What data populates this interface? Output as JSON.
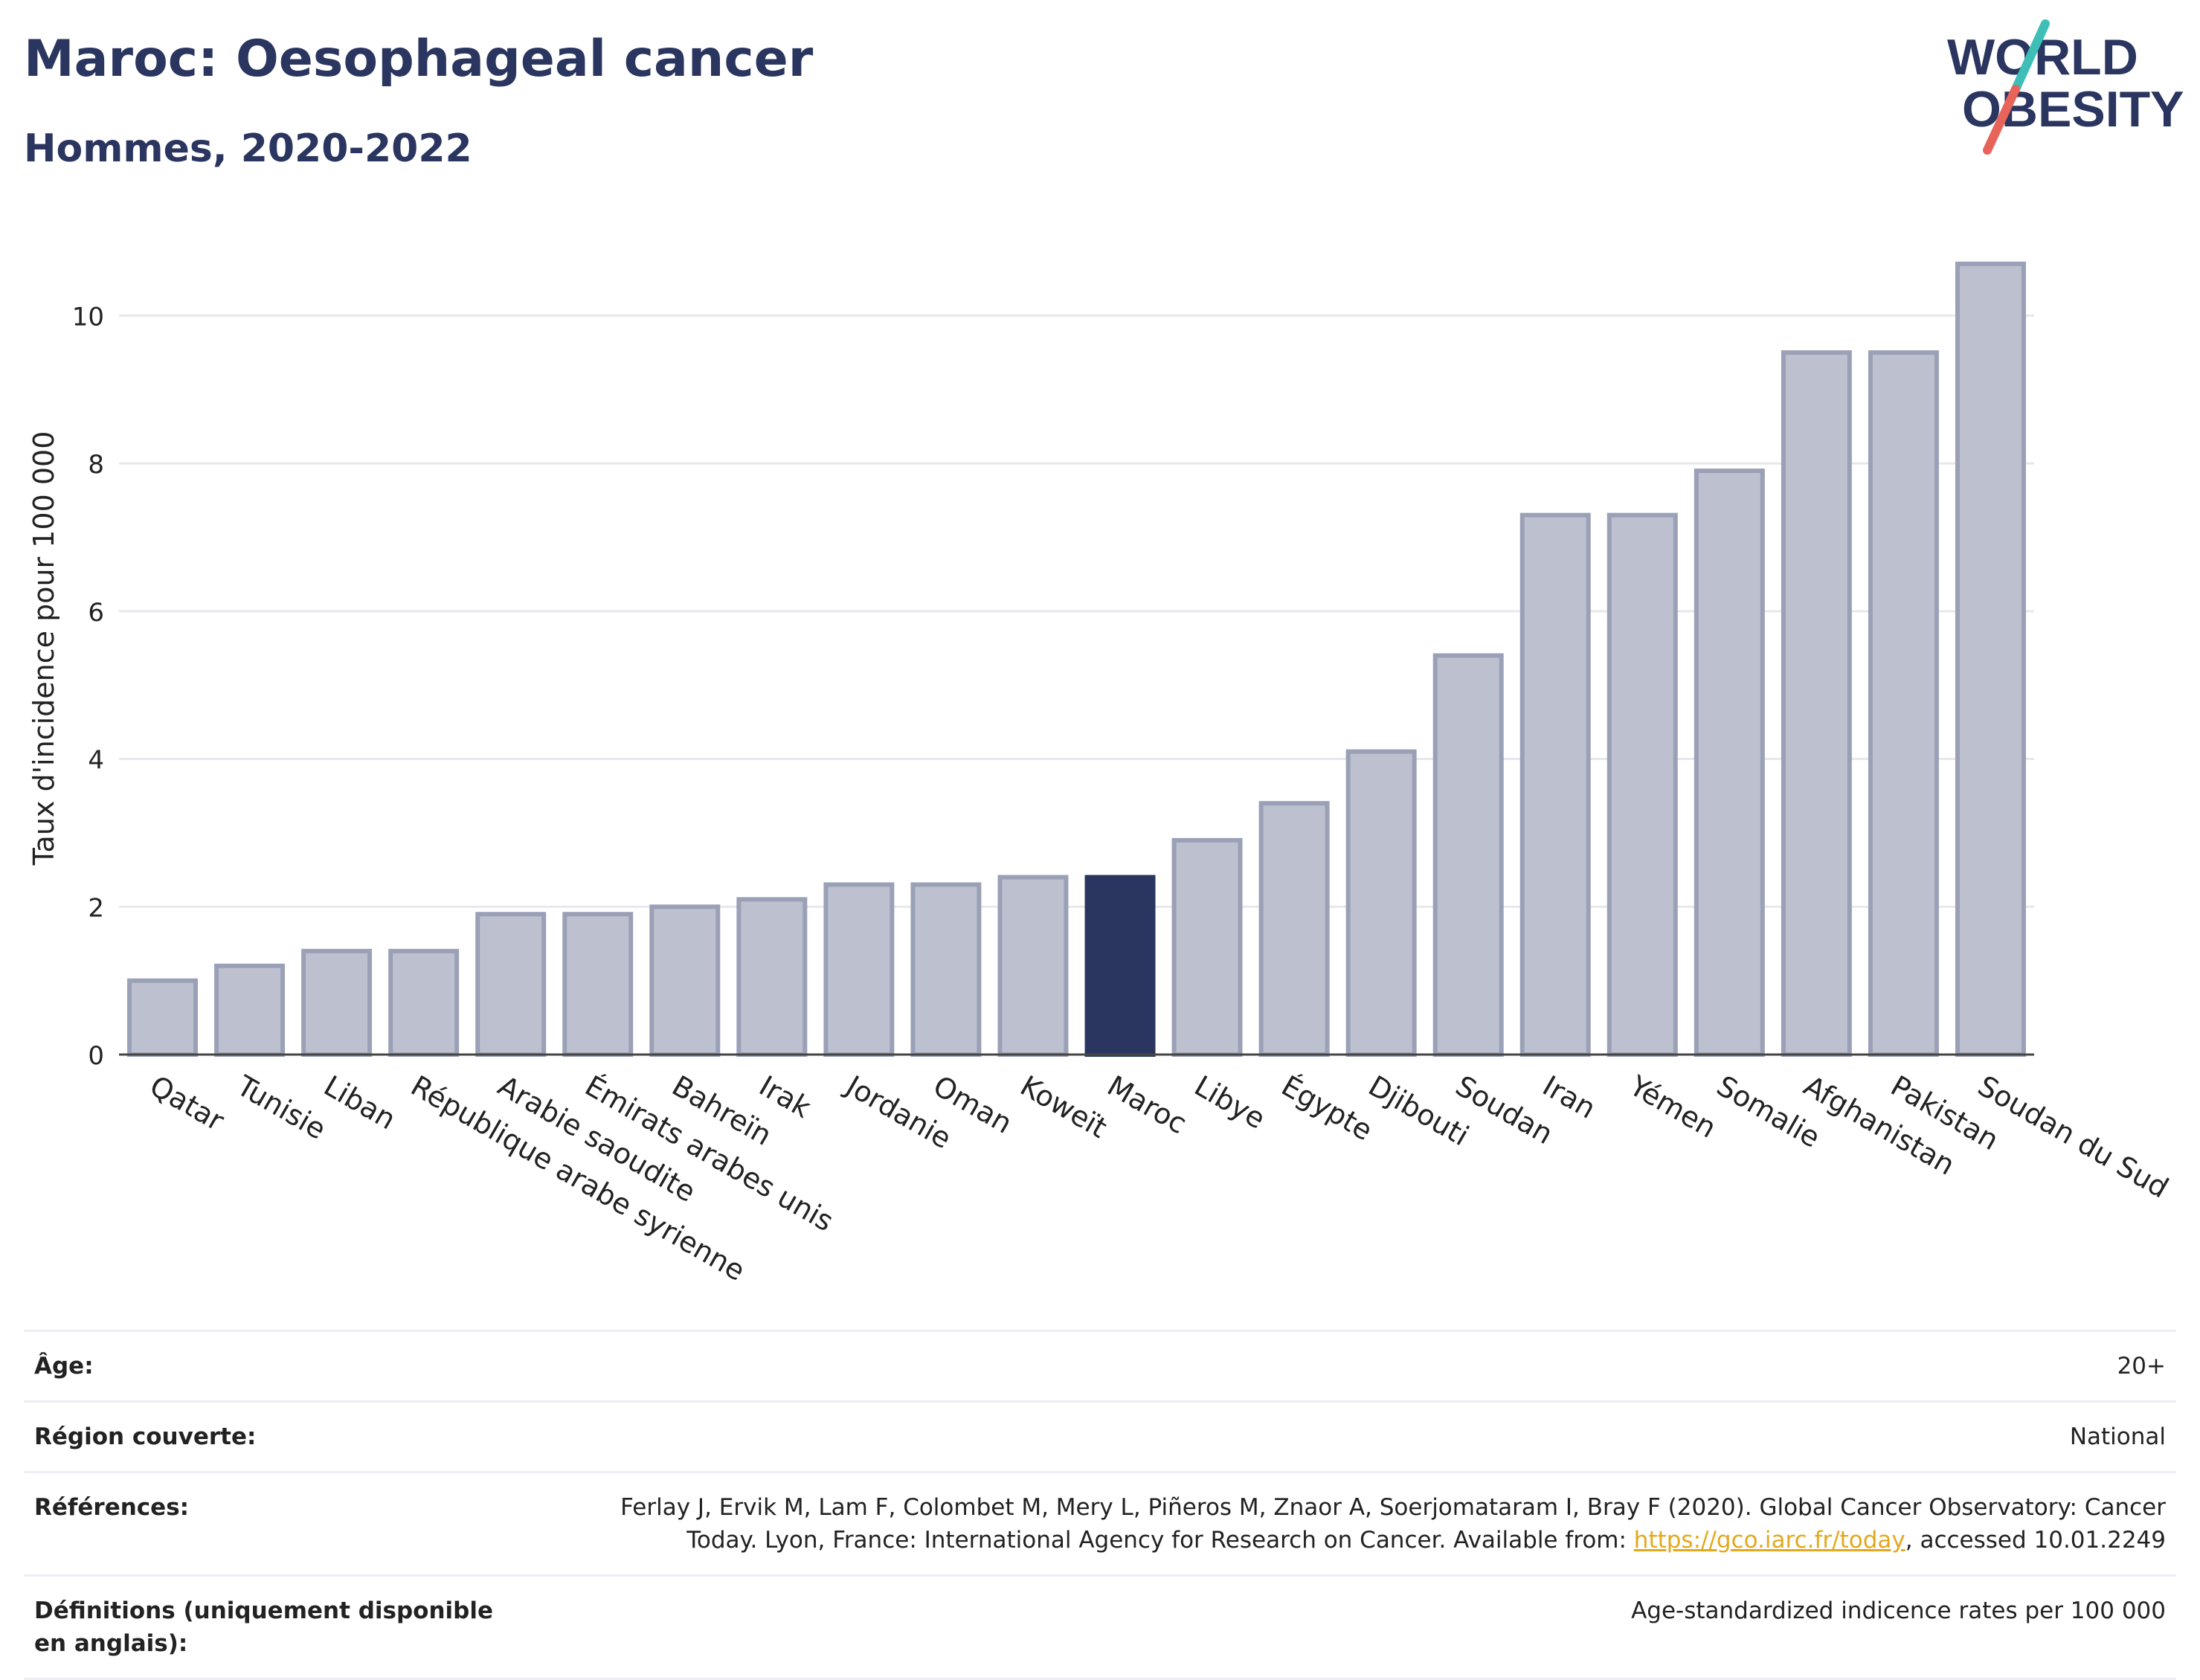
{
  "header": {
    "title": "Maroc: Oesophageal cancer",
    "subtitle": "Hommes, 2020-2022"
  },
  "logo": {
    "line1": "WORLD",
    "line2": "OBESITY",
    "icon": "slash-logo-icon",
    "colors": {
      "text": "#2a3560",
      "slash_top": "#3dbfb8",
      "slash_bottom": "#e8635a"
    }
  },
  "chart_data": {
    "type": "bar",
    "title": "Maroc: Oesophageal cancer",
    "subtitle": "Hommes, 2020-2022",
    "ylabel": "Taux d'incidence pour 100 000",
    "xlabel": "",
    "ylim": [
      0,
      11
    ],
    "yticks": [
      0,
      2,
      4,
      6,
      8,
      10
    ],
    "grid": true,
    "highlight": "Maroc",
    "colors": {
      "bar": "#bdc1cf",
      "bar_edge": "#9aa0b6",
      "highlight": "#2a3560",
      "grid": "#e6e8ee"
    },
    "categories": [
      "Qatar",
      "Tunisie",
      "Liban",
      "République arabe syrienne",
      "Arabie saoudite",
      "Émirats arabes unis",
      "Bahreïn",
      "Irak",
      "Jordanie",
      "Oman",
      "Koweït",
      "Maroc",
      "Libye",
      "Égypte",
      "Djibouti",
      "Soudan",
      "Iran",
      "Yémen",
      "Somalie",
      "Afghanistan",
      "Pakistan",
      "Soudan du Sud"
    ],
    "values": [
      1.0,
      1.2,
      1.4,
      1.4,
      1.9,
      1.9,
      2.0,
      2.1,
      2.3,
      2.3,
      2.4,
      2.4,
      2.9,
      3.4,
      4.1,
      5.4,
      7.3,
      7.3,
      7.9,
      9.5,
      9.5,
      10.7
    ]
  },
  "info": {
    "age_label": "Âge:",
    "age_value": "20+",
    "region_label": "Région couverte:",
    "region_value": "National",
    "refs_label": "Références:",
    "refs_text": "Ferlay J, Ervik M, Lam F, Colombet M, Mery L, Piñeros M, Znaor A, Soerjomataram I, Bray F (2020). Global Cancer Observatory: Cancer Today. Lyon, France: International Agency for Research on Cancer. Available from: ",
    "refs_link": "https://gco.iarc.fr/today",
    "refs_tail": ", accessed 10.01.2249",
    "def_label": "Définitions (uniquement disponible en anglais):",
    "def_value": "Age-standardized indicence rates per 100 000"
  }
}
